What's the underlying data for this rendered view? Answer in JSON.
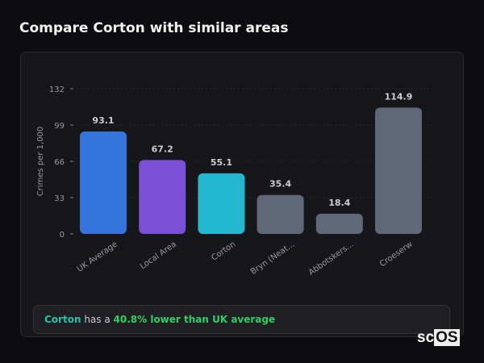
{
  "title": "Compare Corton with similar areas",
  "chart_data": {
    "type": "bar",
    "categories": [
      "UK Average",
      "Local Area",
      "Corton",
      "Bryn (Neat...",
      "Abbotskers...",
      "Croeserw"
    ],
    "values": [
      93.1,
      67.2,
      55.1,
      35.4,
      18.4,
      114.9
    ],
    "value_labels": [
      "93.1",
      "67.2",
      "55.1",
      "35.4",
      "18.4",
      "114.9"
    ],
    "colors": [
      "#3375db",
      "#7b4fd6",
      "#22b8cf",
      "#5f6878",
      "#5f6878",
      "#5f6878"
    ],
    "ylabel": "Crimes per 1,000",
    "xlabel": "",
    "yticks": [
      0,
      33,
      66,
      99,
      132
    ],
    "ylim": [
      0,
      132
    ],
    "grid": true
  },
  "summary": {
    "area": "Corton",
    "middle": " has a ",
    "comparison": "40.8% lower than UK average"
  },
  "logo": {
    "part1": "sc",
    "part2": "OS"
  }
}
